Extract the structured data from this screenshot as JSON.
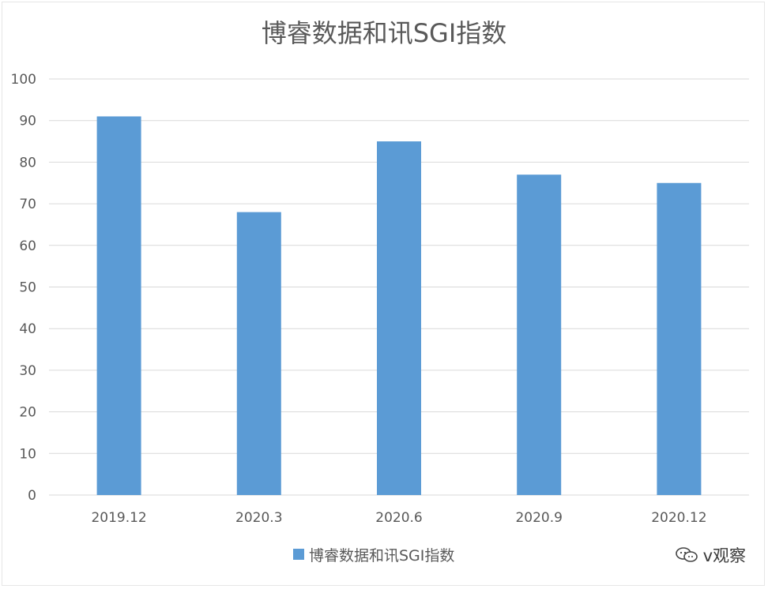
{
  "chart_data": {
    "type": "bar",
    "title": "博睿数据和讯SGI指数",
    "categories": [
      "2019.12",
      "2020.3",
      "2020.6",
      "2020.9",
      "2020.12"
    ],
    "series": [
      {
        "name": "博睿数据和讯SGI指数",
        "values": [
          91,
          68,
          85,
          77,
          75
        ]
      }
    ],
    "xlabel": "",
    "ylabel": "",
    "ylim": [
      0,
      100
    ],
    "yticks": [
      0,
      10,
      20,
      30,
      40,
      50,
      60,
      70,
      80,
      90,
      100
    ],
    "grid": true,
    "legend_position": "bottom",
    "bar_color": "#5b9bd5",
    "grid_color": "#d9d9d9",
    "text_color": "#595959"
  },
  "watermark": {
    "text": "v观察",
    "icon": "wechat-bubble-icon"
  }
}
